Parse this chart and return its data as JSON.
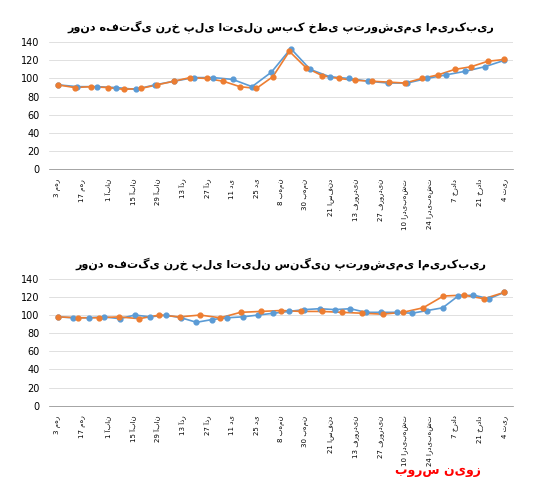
{
  "chart1_title": "روند هفتگی نرخ پلی اتیلن سبک خطی پتروشیمی امیرکبیر",
  "chart2_title": "روند هفتگی نرخ پلی اتیلن سنگین پتروشیمی امیرکبیر",
  "x_labels": [
    "3 مهر",
    "17 مهر",
    "1 آبان",
    "15 آبان",
    "29 آبان",
    "13 آذر",
    "27 آذر",
    "11 دی",
    "25 دی",
    "8 بهمن",
    "30 بهمن",
    "21 اسفند",
    "13 فروردین",
    "27 فروردین",
    "10 اردیبهشت",
    "24 اردیبهشت",
    "7 خرداد",
    "21 خرداد",
    "4 تیر"
  ],
  "chart1_blue": [
    93,
    91,
    91,
    90,
    88,
    93,
    97,
    101,
    101,
    99,
    91,
    107,
    133,
    110,
    102,
    100,
    97,
    95,
    95,
    100,
    104,
    108,
    113,
    120
  ],
  "chart1_orange": [
    93,
    90,
    91,
    90,
    88,
    89,
    93,
    97,
    101,
    100,
    97,
    91,
    89,
    102,
    130,
    112,
    103,
    100,
    98,
    97,
    96,
    95,
    100,
    104,
    110,
    113,
    119,
    121
  ],
  "chart2_blue": [
    98,
    97,
    97,
    98,
    96,
    100,
    98,
    100,
    97,
    92,
    95,
    97,
    98,
    100,
    102,
    104,
    106,
    107,
    106,
    107,
    103,
    103,
    103,
    102,
    105,
    108,
    121,
    122,
    118,
    125
  ],
  "chart2_orange": [
    98,
    97,
    97,
    98,
    96,
    100,
    98,
    100,
    97,
    103,
    104,
    105,
    104,
    104,
    103,
    102,
    101,
    103,
    108,
    121,
    122,
    118,
    125
  ],
  "ylim": [
    0,
    140
  ],
  "yticks": [
    0,
    20,
    40,
    60,
    80,
    100,
    120,
    140
  ],
  "line_blue": "#5B9BD5",
  "line_orange": "#ED7D31",
  "bg_color": "#FFFFFF",
  "watermark_text": "بورس نیوز"
}
